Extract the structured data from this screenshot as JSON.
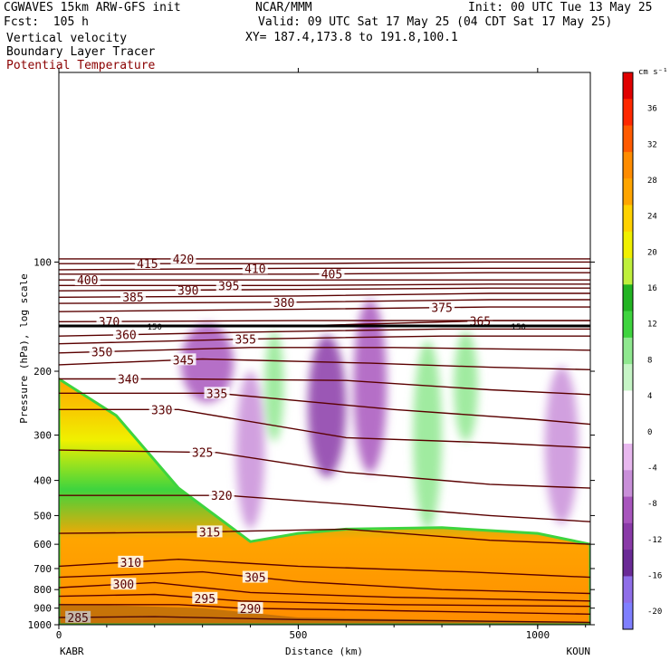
{
  "header": {
    "model": "CGWAVES 15km ARW-GFS init",
    "forecast": "Fcst:  105 h",
    "org": "NCAR/MMM",
    "init": "Init: 00 UTC Tue 13 May 25",
    "valid": "Valid: 09 UTC Sat 17 May 25 (04 CDT Sat 17 May 25)",
    "xy": "XY= 187.4,173.8 to 191.8,100.1",
    "fields": [
      "Vertical velocity",
      "Boundary Layer Tracer",
      "Potential Temperature"
    ],
    "theta_color": "#8b0000"
  },
  "chart_data": {
    "type": "heatmap",
    "xlabel": "Distance (km)",
    "ylabel": "Pressure (hPa), log scale",
    "xlim": [
      0,
      1110
    ],
    "x_ticks": [
      "0",
      "500",
      "1000"
    ],
    "x_tick_values": [
      0,
      500,
      1000
    ],
    "x_endpoints": [
      "KABR",
      "KOUN"
    ],
    "y_ticks": [
      "100",
      "200",
      "300",
      "400",
      "500",
      "600",
      "700",
      "800",
      "900",
      "1000"
    ],
    "y_tick_values": [
      100,
      200,
      300,
      400,
      500,
      600,
      700,
      800,
      900,
      1000
    ],
    "y_scale": "log",
    "ylim": [
      1000,
      30
    ],
    "colorbar": {
      "units": "cm s⁻¹",
      "labels": [
        "36",
        "32",
        "28",
        "24",
        "20",
        "16",
        "12",
        "8",
        "4",
        "0",
        "-4",
        "-8",
        "-12",
        "-16",
        "-20"
      ],
      "label_values": [
        36,
        32,
        28,
        24,
        20,
        16,
        12,
        8,
        4,
        0,
        -4,
        -8,
        -12,
        -16,
        -20
      ],
      "range": [
        -22,
        40
      ],
      "colors": [
        "#7f7fff",
        "#8f6ee8",
        "#6a2a96",
        "#8a3aa8",
        "#a855bd",
        "#c98fd9",
        "#e8b8ef",
        "#ffffff",
        "#ffffff",
        "#c6f5c6",
        "#8fe88f",
        "#3ed43e",
        "#22b422",
        "#bff03c",
        "#f0f000",
        "#ffd200",
        "#ffa500",
        "#ff8c00",
        "#ff5a00",
        "#ff2800",
        "#e00000"
      ]
    },
    "isentropes": [
      {
        "label": "285",
        "pts": [
          [
            0,
            955
          ],
          [
            200,
            950
          ],
          [
            500,
            968
          ],
          [
            800,
            975
          ],
          [
            1110,
            985
          ]
        ],
        "label_x": 40
      },
      {
        "label": "290",
        "pts": [
          [
            0,
            880
          ],
          [
            250,
            880
          ],
          [
            380,
            900
          ],
          [
            700,
            915
          ],
          [
            1110,
            935
          ]
        ],
        "label_x": 400
      },
      {
        "label": "295",
        "pts": [
          [
            0,
            835
          ],
          [
            200,
            825
          ],
          [
            380,
            860
          ],
          [
            700,
            880
          ],
          [
            1110,
            890
          ]
        ],
        "label_x": 305
      },
      {
        "label": "300",
        "pts": [
          [
            0,
            790
          ],
          [
            200,
            765
          ],
          [
            400,
            815
          ],
          [
            700,
            840
          ],
          [
            1110,
            860
          ]
        ],
        "label_x": 135
      },
      {
        "label": "305",
        "pts": [
          [
            0,
            740
          ],
          [
            300,
            715
          ],
          [
            500,
            760
          ],
          [
            800,
            800
          ],
          [
            1110,
            820
          ]
        ],
        "label_x": 410
      },
      {
        "label": "310",
        "pts": [
          [
            0,
            690
          ],
          [
            250,
            660
          ],
          [
            500,
            690
          ],
          [
            850,
            715
          ],
          [
            1110,
            740
          ]
        ],
        "label_x": 150
      },
      {
        "label": "315",
        "pts": [
          [
            0,
            560
          ],
          [
            300,
            555
          ],
          [
            600,
            545
          ],
          [
            900,
            585
          ],
          [
            1110,
            600
          ]
        ],
        "label_x": 315
      },
      {
        "label": "320",
        "pts": [
          [
            0,
            440
          ],
          [
            350,
            440
          ],
          [
            600,
            465
          ],
          [
            900,
            500
          ],
          [
            1110,
            520
          ]
        ],
        "label_x": 340
      },
      {
        "label": "325",
        "pts": [
          [
            0,
            330
          ],
          [
            330,
            335
          ],
          [
            600,
            380
          ],
          [
            900,
            410
          ],
          [
            1110,
            420
          ]
        ],
        "label_x": 300
      },
      {
        "label": "330",
        "pts": [
          [
            0,
            255
          ],
          [
            250,
            255
          ],
          [
            600,
            305
          ],
          [
            900,
            315
          ],
          [
            1110,
            325
          ]
        ],
        "label_x": 215
      },
      {
        "label": "335",
        "pts": [
          [
            0,
            230
          ],
          [
            330,
            230
          ],
          [
            700,
            255
          ],
          [
            1000,
            272
          ],
          [
            1110,
            280
          ]
        ],
        "label_x": 330
      },
      {
        "label": "340",
        "pts": [
          [
            0,
            210
          ],
          [
            250,
            210
          ],
          [
            600,
            212
          ],
          [
            900,
            225
          ],
          [
            1110,
            232
          ]
        ],
        "label_x": 145
      },
      {
        "label": "345",
        "pts": [
          [
            0,
            192
          ],
          [
            300,
            185
          ],
          [
            650,
            190
          ],
          [
            900,
            195
          ],
          [
            1110,
            198
          ]
        ],
        "label_x": 260
      },
      {
        "label": "350",
        "pts": [
          [
            0,
            178
          ],
          [
            400,
            172
          ],
          [
            700,
            172
          ],
          [
            1110,
            175
          ]
        ],
        "label_x": 90
      },
      {
        "label": "355",
        "pts": [
          [
            0,
            168
          ],
          [
            400,
            163
          ],
          [
            800,
            160
          ],
          [
            1110,
            160
          ]
        ],
        "label_x": 390
      },
      {
        "label": "360",
        "pts": [
          [
            0,
            160
          ],
          [
            400,
            156
          ],
          [
            800,
            153
          ],
          [
            1110,
            153
          ]
        ],
        "label_x": 140
      },
      {
        "label": "365",
        "pts": [
          [
            0,
            150
          ],
          [
            500,
            150
          ],
          [
            900,
            145
          ],
          [
            1110,
            145
          ]
        ],
        "label_x": 880
      },
      {
        "label": "370",
        "pts": [
          [
            0,
            146
          ],
          [
            500,
            145
          ],
          [
            900,
            145
          ],
          [
            1110,
            145
          ]
        ],
        "label_x": 105
      },
      {
        "label": "375",
        "pts": [
          [
            0,
            137
          ],
          [
            500,
            135
          ],
          [
            900,
            133
          ],
          [
            1110,
            133
          ]
        ],
        "label_x": 800
      },
      {
        "label": "380",
        "pts": [
          [
            0,
            130
          ],
          [
            500,
            129
          ],
          [
            900,
            127
          ],
          [
            1110,
            127
          ]
        ],
        "label_x": 470
      },
      {
        "label": "385",
        "pts": [
          [
            0,
            125
          ],
          [
            500,
            124
          ],
          [
            900,
            122
          ],
          [
            1110,
            122
          ]
        ],
        "label_x": 155
      },
      {
        "label": "390",
        "pts": [
          [
            0,
            120
          ],
          [
            500,
            119
          ],
          [
            900,
            118
          ],
          [
            1110,
            118
          ]
        ],
        "label_x": 270
      },
      {
        "label": "395",
        "pts": [
          [
            0,
            116
          ],
          [
            500,
            116
          ],
          [
            900,
            115
          ],
          [
            1110,
            115
          ]
        ],
        "label_x": 355
      },
      {
        "label": "400",
        "pts": [
          [
            0,
            112
          ],
          [
            500,
            112
          ],
          [
            900,
            112
          ],
          [
            1110,
            112
          ]
        ],
        "label_x": 60
      },
      {
        "label": "405",
        "pts": [
          [
            0,
            108
          ],
          [
            500,
            108
          ],
          [
            900,
            107
          ],
          [
            1110,
            107
          ]
        ],
        "label_x": 570
      },
      {
        "label": "410",
        "pts": [
          [
            0,
            105
          ],
          [
            500,
            104
          ],
          [
            900,
            104
          ],
          [
            1110,
            104
          ]
        ],
        "label_x": 410
      },
      {
        "label": "415",
        "pts": [
          [
            0,
            101
          ],
          [
            500,
            101
          ],
          [
            900,
            100
          ],
          [
            1110,
            100
          ]
        ],
        "label_x": 185
      },
      {
        "label": "420",
        "pts": [
          [
            0,
            98
          ],
          [
            500,
            98
          ],
          [
            900,
            98
          ],
          [
            1110,
            98
          ]
        ],
        "label_x": 260
      }
    ],
    "tropopause_marker": {
      "pressure": 150,
      "labels": [
        "150",
        "150"
      ],
      "label_x": [
        200,
        960
      ]
    },
    "terrain_top": [
      [
        0,
        875
      ],
      [
        300,
        900
      ],
      [
        500,
        955
      ],
      [
        800,
        970
      ],
      [
        1110,
        985
      ]
    ],
    "bl_tracer_top": [
      [
        0,
        210
      ],
      [
        120,
        265
      ],
      [
        250,
        420
      ],
      [
        400,
        590
      ],
      [
        500,
        560
      ],
      [
        600,
        545
      ],
      [
        800,
        540
      ],
      [
        1000,
        560
      ],
      [
        1110,
        600
      ]
    ],
    "w_cells": [
      {
        "x": 560,
        "p": 250,
        "w": -11,
        "rx": 40,
        "rp": 0.45
      },
      {
        "x": 650,
        "p": 220,
        "w": -10,
        "rx": 35,
        "rp": 0.55
      },
      {
        "x": 770,
        "p": 300,
        "w": 10,
        "rx": 30,
        "rp": 0.6
      },
      {
        "x": 450,
        "p": 220,
        "w": 10,
        "rx": 20,
        "rp": 0.35
      },
      {
        "x": 310,
        "p": 190,
        "w": -9,
        "rx": 55,
        "rp": 0.25
      },
      {
        "x": 850,
        "p": 220,
        "w": 8,
        "rx": 25,
        "rp": 0.35
      },
      {
        "x": 1050,
        "p": 320,
        "w": -6,
        "rx": 35,
        "rp": 0.5
      },
      {
        "x": 400,
        "p": 330,
        "w": -7,
        "rx": 30,
        "rp": 0.5
      }
    ]
  }
}
